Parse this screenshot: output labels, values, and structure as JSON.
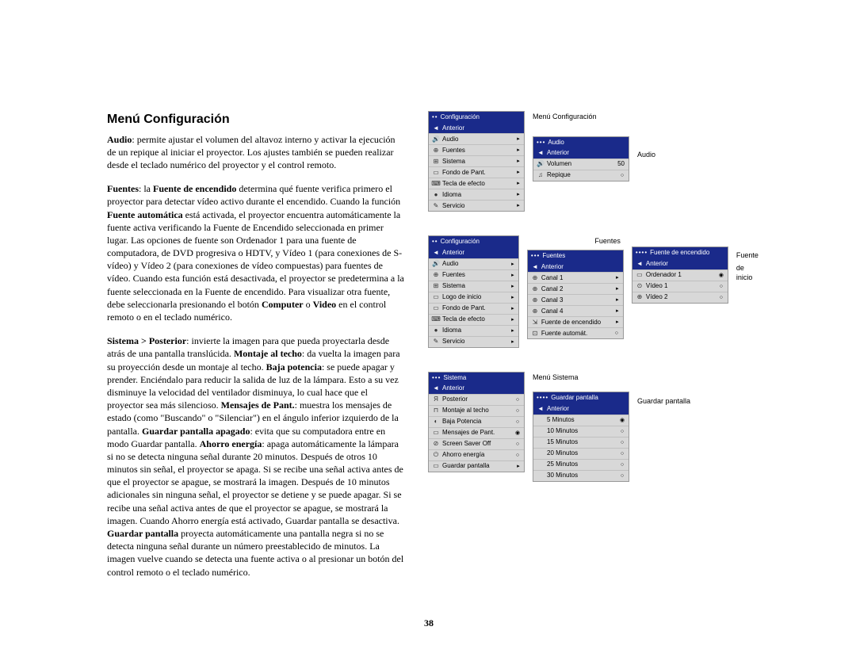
{
  "heading": "Menú Configuración",
  "para1_pre": "Audio",
  "para1": ": permite ajustar el volumen del altavoz interno y activar la ejecución de un repique al iniciar el proyector. Los ajustes también se pueden realizar desde el teclado numérico del proyector y el control remoto.",
  "para2_a": "Fuentes",
  "para2_b": ": la ",
  "para2_c": "Fuente de encendido",
  "para2_d": " determina qué fuente verifica primero el proyector para detectar vídeo activo durante el encendido. Cuando la función ",
  "para2_e": "Fuente automática",
  "para2_f": " está activada, el proyector encuentra automáticamente la fuente activa verificando la Fuente de Encendido seleccionada en primer lugar. Las opciones de fuente son Ordenador 1 para una fuente de computadora, de DVD progresiva o HDTV, y Vídeo 1 (para conexiones de S-vídeo) y Vídeo 2 (para conexiones de vídeo compuestas) para fuentes de vídeo. Cuando esta función está desactivada, el proyector se predetermina a la fuente seleccionada en la Fuente de encendido. Para visualizar otra fuente, debe seleccionarla presionando el botón ",
  "para2_g": "Computer",
  "para2_h": " o ",
  "para2_i": "Video",
  "para2_j": " en el control remoto o en el teclado numérico.",
  "para3_a": "Sistema > Posterior",
  "para3_b": ": invierte la imagen para que pueda proyectarla desde atrás de una pantalla translúcida. ",
  "para3_c": "Montaje al techo",
  "para3_d": ": da vuelta la imagen para su proyección desde un montaje al techo. ",
  "para3_e": "Baja potencia",
  "para3_f": ": se puede apagar y prender. Enciéndalo para reducir la salida de luz de la lámpara. Esto a su vez disminuye la velocidad del ventilador disminuya, lo cual hace que el proyector sea más silencioso. ",
  "para3_g": "Mensajes de Pant.",
  "para3_h": ": muestra los mensajes de estado (como \"Buscando\" o \"Silenciar\") en el ángulo inferior izquierdo de la pantalla. ",
  "para3_i": "Guardar pantalla apagado",
  "para3_j": ": evita que su computadora entre en modo Guardar pantalla. ",
  "para3_k": "Ahorro energía",
  "para3_l": ": apaga automáticamente la lámpara si no se detecta ninguna señal durante 20 minutos. Después de otros 10 minutos sin señal, el proyector se apaga. Si se recibe una señal activa antes de que el proyector se apague, se mostrará la imagen. Después de 10 minutos adicionales sin ninguna señal, el proyector se detiene y se puede apagar. Si se recibe una señal activa antes de que el proyector se apague, se mostrará la imagen. Cuando Ahorro energía está activado, Guardar pantalla se desactiva. ",
  "para3_m": "Guardar pantalla",
  "para3_n": " proyecta automáticamente una pantalla negra si no se detecta ninguna señal durante un número preestablecido de minutos. La imagen vuelve cuando se detecta una fuente activa o al presionar un botón del control remoto o el teclado numérico.",
  "page_number": "38",
  "captions": {
    "config": "Menú Configuración",
    "audio": "Audio",
    "fuentes": "Fuentes",
    "fuente_inicio1": "Fuente",
    "fuente_inicio2": "de inicio",
    "sistema": "Menú Sistema",
    "guardar": "Guardar pantalla"
  },
  "menu_config": {
    "title": "Configuración",
    "dots": "••",
    "items": [
      {
        "icon": "◄",
        "label": "Anterior",
        "sel": true
      },
      {
        "icon": "🔊",
        "label": "Audio",
        "arrow": "▸"
      },
      {
        "icon": "⊕",
        "label": "Fuentes",
        "arrow": "▸"
      },
      {
        "icon": "⊞",
        "label": "Sistema",
        "arrow": "▸"
      },
      {
        "icon": "▭",
        "label": "Fondo de Pant.",
        "arrow": "▸"
      },
      {
        "icon": "⌨",
        "label": "Tecla de efecto",
        "arrow": "▸"
      },
      {
        "icon": "●",
        "label": "Idioma",
        "arrow": "▸"
      },
      {
        "icon": "✎",
        "label": "Servicio",
        "arrow": "▸"
      }
    ]
  },
  "menu_audio": {
    "title": "Audio",
    "dots": "•••",
    "items": [
      {
        "icon": "◄",
        "label": "Anterior",
        "sel": true
      },
      {
        "icon": "🔊",
        "label": "Volumen",
        "val": "50"
      },
      {
        "icon": "♫",
        "label": "Repique",
        "radio": "○"
      }
    ]
  },
  "menu_config2": {
    "title": "Configuración",
    "dots": "••",
    "items": [
      {
        "icon": "◄",
        "label": "Anterior",
        "sel": true
      },
      {
        "icon": "🔊",
        "label": "Audio",
        "arrow": "▸"
      },
      {
        "icon": "⊕",
        "label": "Fuentes",
        "arrow": "▸"
      },
      {
        "icon": "⊞",
        "label": "Sistema",
        "arrow": "▸"
      },
      {
        "icon": "▭",
        "label": "Logo de inicio",
        "arrow": "▸"
      },
      {
        "icon": "▭",
        "label": "Fondo de Pant.",
        "arrow": "▸"
      },
      {
        "icon": "⌨",
        "label": "Tecla de efecto",
        "arrow": "▸"
      },
      {
        "icon": "●",
        "label": "Idioma",
        "arrow": "▸"
      },
      {
        "icon": "✎",
        "label": "Servicio",
        "arrow": "▸"
      }
    ]
  },
  "menu_fuentes": {
    "title": "Fuentes",
    "dots": "•••",
    "items": [
      {
        "icon": "◄",
        "label": "Anterior",
        "sel": true
      },
      {
        "icon": "⊕",
        "label": "Canal 1",
        "arrow": "▸"
      },
      {
        "icon": "⊕",
        "label": "Canal 2",
        "arrow": "▸"
      },
      {
        "icon": "⊕",
        "label": "Canal 3",
        "arrow": "▸"
      },
      {
        "icon": "⊕",
        "label": "Canal 4",
        "arrow": "▸"
      },
      {
        "icon": "⇲",
        "label": "Fuente de encendido",
        "arrow": "▸"
      },
      {
        "icon": "⊡",
        "label": "Fuente automát.",
        "radio": "○"
      }
    ]
  },
  "menu_fuente_enc": {
    "title": "Fuente de encendido",
    "dots": "••••",
    "items": [
      {
        "icon": "◄",
        "label": "Anterior",
        "sel": true
      },
      {
        "icon": "▭",
        "label": "Ordenador 1",
        "radio": "◉"
      },
      {
        "icon": "⊙",
        "label": "Vídeo 1",
        "radio": "○"
      },
      {
        "icon": "⊕",
        "label": "Vídeo 2",
        "radio": "○"
      }
    ]
  },
  "menu_sistema": {
    "title": "Sistema",
    "dots": "•••",
    "items": [
      {
        "icon": "◄",
        "label": "Anterior",
        "sel": true
      },
      {
        "icon": "Я",
        "label": "Posterior",
        "radio": "○"
      },
      {
        "icon": "⊓",
        "label": "Montaje al techo",
        "radio": "○"
      },
      {
        "icon": "◐",
        "label": "Baja Potencia",
        "radio": "○"
      },
      {
        "icon": "▭",
        "label": "Mensajes de Pant.",
        "radio": "◉"
      },
      {
        "icon": "⊘",
        "label": "Screen Saver Off",
        "radio": "○"
      },
      {
        "icon": "⏻",
        "label": "Ahorro energía",
        "radio": "○"
      },
      {
        "icon": "▭",
        "label": "Guardar pantalla",
        "arrow": "▸"
      }
    ]
  },
  "menu_guardar": {
    "title": "Guardar pantalla",
    "dots": "••••",
    "items": [
      {
        "icon": "◄",
        "label": "Anterior",
        "sel": true
      },
      {
        "icon": "",
        "label": "5 Minutos",
        "radio": "◉"
      },
      {
        "icon": "",
        "label": "10 Minutos",
        "radio": "○"
      },
      {
        "icon": "",
        "label": "15 Minutos",
        "radio": "○"
      },
      {
        "icon": "",
        "label": "20 Minutos",
        "radio": "○"
      },
      {
        "icon": "",
        "label": "25 Minutos",
        "radio": "○"
      },
      {
        "icon": "",
        "label": "30 Minutos",
        "radio": "○"
      }
    ]
  }
}
